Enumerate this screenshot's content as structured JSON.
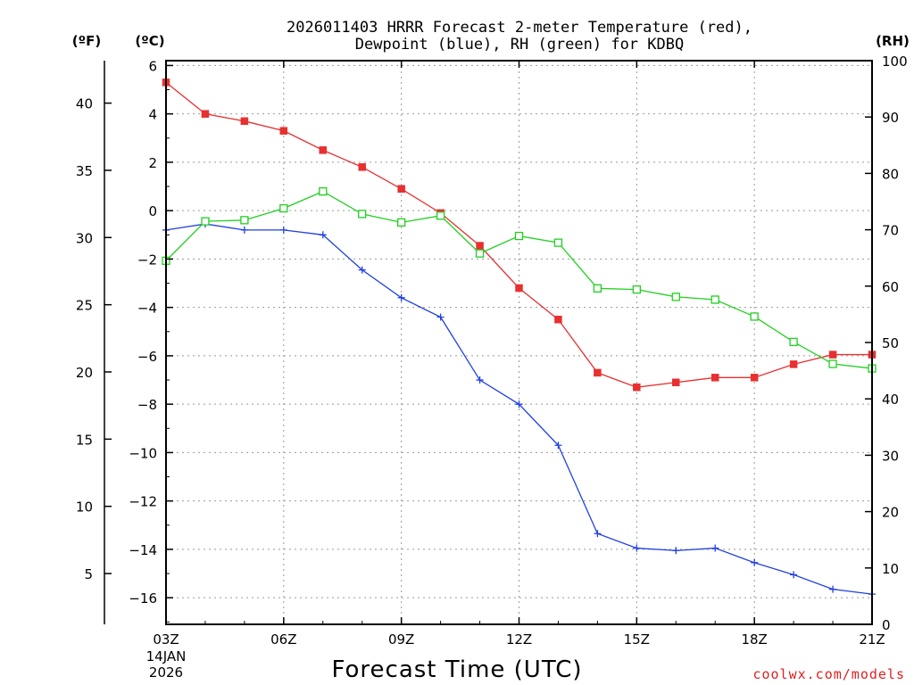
{
  "chart_data": {
    "type": "line",
    "title_line1": "2026011403 HRRR Forecast 2-meter Temperature (red),",
    "title_line2": "Dewpoint (blue), RH (green) for KDBQ",
    "xlabel": "Forecast Time (UTC)",
    "unit_f": "(ºF)",
    "unit_c": "(ºC)",
    "unit_rh": "(RH)",
    "date_line1": "14JAN",
    "date_line2": "2026",
    "credit": "coolwx.com/models",
    "x": [
      0,
      1,
      2,
      3,
      4,
      5,
      6,
      7,
      8,
      9,
      10,
      11,
      12,
      13,
      14,
      15,
      16,
      17,
      18
    ],
    "x_ticks": [
      {
        "x": 0,
        "label": "03Z"
      },
      {
        "x": 3,
        "label": "06Z"
      },
      {
        "x": 6,
        "label": "09Z"
      },
      {
        "x": 9,
        "label": "12Z"
      },
      {
        "x": 12,
        "label": "15Z"
      },
      {
        "x": 15,
        "label": "18Z"
      },
      {
        "x": 18,
        "label": "21Z"
      }
    ],
    "ylim_c": [
      -17.1,
      6.2
    ],
    "ylim_rh": [
      0,
      100
    ],
    "c_ticks": [
      6,
      4,
      2,
      0,
      -2,
      -4,
      -6,
      -8,
      -10,
      -12,
      -14,
      -16
    ],
    "c_tick_labels": [
      "6",
      "4",
      "2",
      "0",
      "−2",
      "−4",
      "−6",
      "−8",
      "−10",
      "−12",
      "−14",
      "−16"
    ],
    "f_ticks": [
      40,
      35,
      30,
      25,
      20,
      15,
      10,
      5
    ],
    "f_tick_labels": [
      "40",
      "35",
      "30",
      "25",
      "20",
      "15",
      "10",
      "5"
    ],
    "rh_ticks": [
      100,
      90,
      80,
      70,
      60,
      50,
      40,
      30,
      20,
      10,
      0
    ],
    "rh_tick_labels": [
      "100",
      "90",
      "80",
      "70",
      "60",
      "50",
      "40",
      "30",
      "20",
      "10",
      "0"
    ],
    "colors": {
      "temperature": "#e83030",
      "dewpoint": "#2040e0",
      "rh": "#20d020",
      "grid": "#999999"
    },
    "series": [
      {
        "name": "Temperature",
        "axis": "c",
        "marker": "filled-square",
        "values": [
          5.3,
          4.0,
          3.7,
          3.3,
          2.5,
          1.8,
          0.9,
          -0.1,
          -1.45,
          -3.2,
          -4.5,
          -6.7,
          -7.3,
          -7.1,
          -6.9,
          -6.9,
          -6.35,
          -5.95,
          -5.95
        ]
      },
      {
        "name": "Dewpoint",
        "axis": "c",
        "marker": "plus",
        "values": [
          -0.8,
          -0.55,
          -0.8,
          -0.8,
          -1.0,
          -2.45,
          -3.6,
          -4.4,
          -7.0,
          -8.0,
          -9.7,
          -13.35,
          -13.95,
          -14.05,
          -13.95,
          -14.55,
          -15.05,
          -15.65,
          -15.85
        ]
      },
      {
        "name": "RH",
        "axis": "rh",
        "marker": "open-square",
        "values": [
          64.5,
          71.5,
          71.7,
          73.8,
          76.8,
          72.8,
          71.3,
          72.5,
          65.8,
          68.9,
          67.7,
          59.6,
          59.4,
          58.1,
          57.6,
          54.6,
          50.1,
          46.2,
          45.4
        ]
      }
    ]
  }
}
